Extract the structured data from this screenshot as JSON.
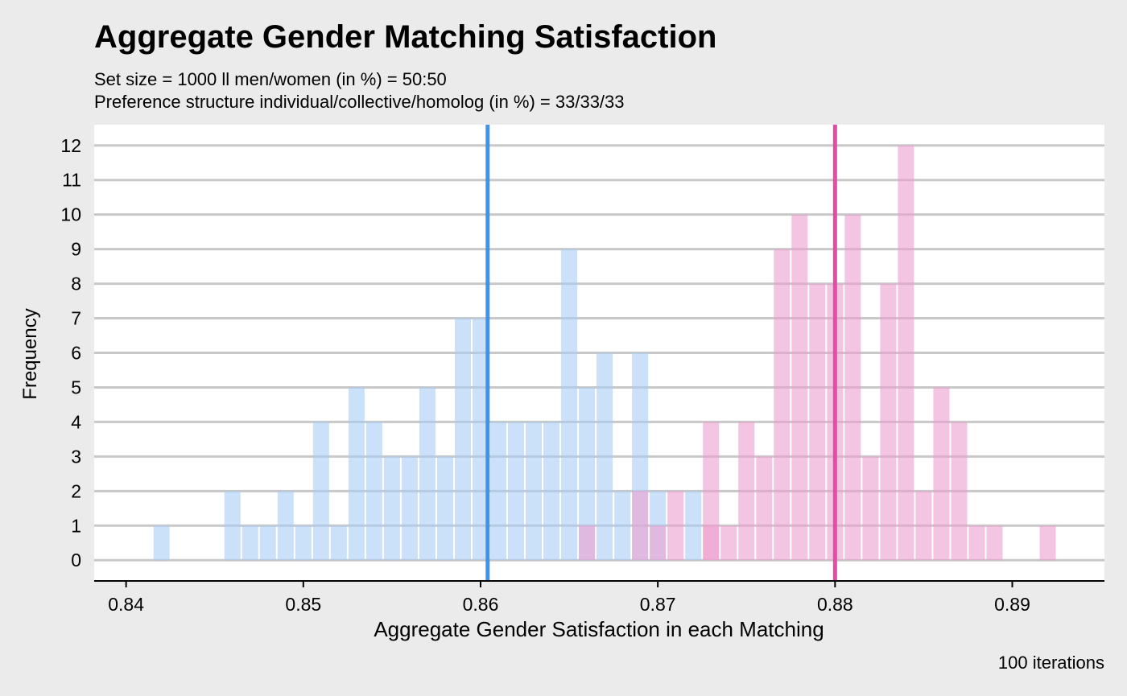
{
  "chart_data": {
    "type": "bar",
    "title": "Aggregate Gender Matching Satisfaction",
    "subtitle_lines": [
      "Set size = 1000 ll men/women (in %) = 50:50",
      "Preference structure individual/collective/homolog (in %) = 33/33/33"
    ],
    "xlabel": "Aggregate Gender Satisfaction in each Matching",
    "ylabel": "Frequency",
    "caption": "100  iterations",
    "xlim": [
      0.8382,
      0.8952
    ],
    "ylim": [
      -0.6,
      12.6
    ],
    "x_ticks": [
      0.84,
      0.85,
      0.86,
      0.87,
      0.88,
      0.89
    ],
    "x_tick_labels": [
      "0.84",
      "0.85",
      "0.86",
      "0.87",
      "0.88",
      "0.89"
    ],
    "y_ticks": [
      0,
      1,
      2,
      3,
      4,
      5,
      6,
      7,
      8,
      9,
      10,
      11,
      12
    ],
    "y_tick_labels": [
      "0",
      "1",
      "2",
      "3",
      "4",
      "5",
      "6",
      "7",
      "8",
      "9",
      "10",
      "11",
      "12"
    ],
    "bin_width": 0.001,
    "grid": "horizontal",
    "legend": "none",
    "series": [
      {
        "color": "#a9cbf5",
        "mean": 0.8604,
        "mean_color": "#3d94e8",
        "bins": [
          [
            0.842,
            1
          ],
          [
            0.846,
            2
          ],
          [
            0.847,
            1
          ],
          [
            0.848,
            1
          ],
          [
            0.849,
            2
          ],
          [
            0.85,
            1
          ],
          [
            0.851,
            4
          ],
          [
            0.852,
            1
          ],
          [
            0.853,
            5
          ],
          [
            0.854,
            4
          ],
          [
            0.855,
            3
          ],
          [
            0.856,
            3
          ],
          [
            0.857,
            5
          ],
          [
            0.858,
            3
          ],
          [
            0.859,
            7
          ],
          [
            0.86,
            7
          ],
          [
            0.861,
            4
          ],
          [
            0.862,
            4
          ],
          [
            0.863,
            4
          ],
          [
            0.864,
            4
          ],
          [
            0.865,
            9
          ],
          [
            0.866,
            5
          ],
          [
            0.867,
            6
          ],
          [
            0.868,
            2
          ],
          [
            0.869,
            6
          ],
          [
            0.87,
            2
          ],
          [
            0.872,
            2
          ]
        ]
      },
      {
        "color": "#ed9fcf",
        "mean": 0.88,
        "mean_color": "#e84aa9",
        "bins": [
          [
            0.866,
            1
          ],
          [
            0.869,
            2
          ],
          [
            0.87,
            1
          ],
          [
            0.871,
            2
          ],
          [
            0.873,
            4
          ],
          [
            0.873,
            1
          ],
          [
            0.874,
            1
          ],
          [
            0.875,
            4
          ],
          [
            0.876,
            3
          ],
          [
            0.877,
            9
          ],
          [
            0.878,
            10
          ],
          [
            0.879,
            8
          ],
          [
            0.88,
            8
          ],
          [
            0.881,
            10
          ],
          [
            0.882,
            3
          ],
          [
            0.883,
            8
          ],
          [
            0.884,
            12
          ],
          [
            0.885,
            2
          ],
          [
            0.886,
            5
          ],
          [
            0.887,
            4
          ],
          [
            0.888,
            1
          ],
          [
            0.889,
            1
          ],
          [
            0.892,
            1
          ]
        ]
      }
    ]
  }
}
